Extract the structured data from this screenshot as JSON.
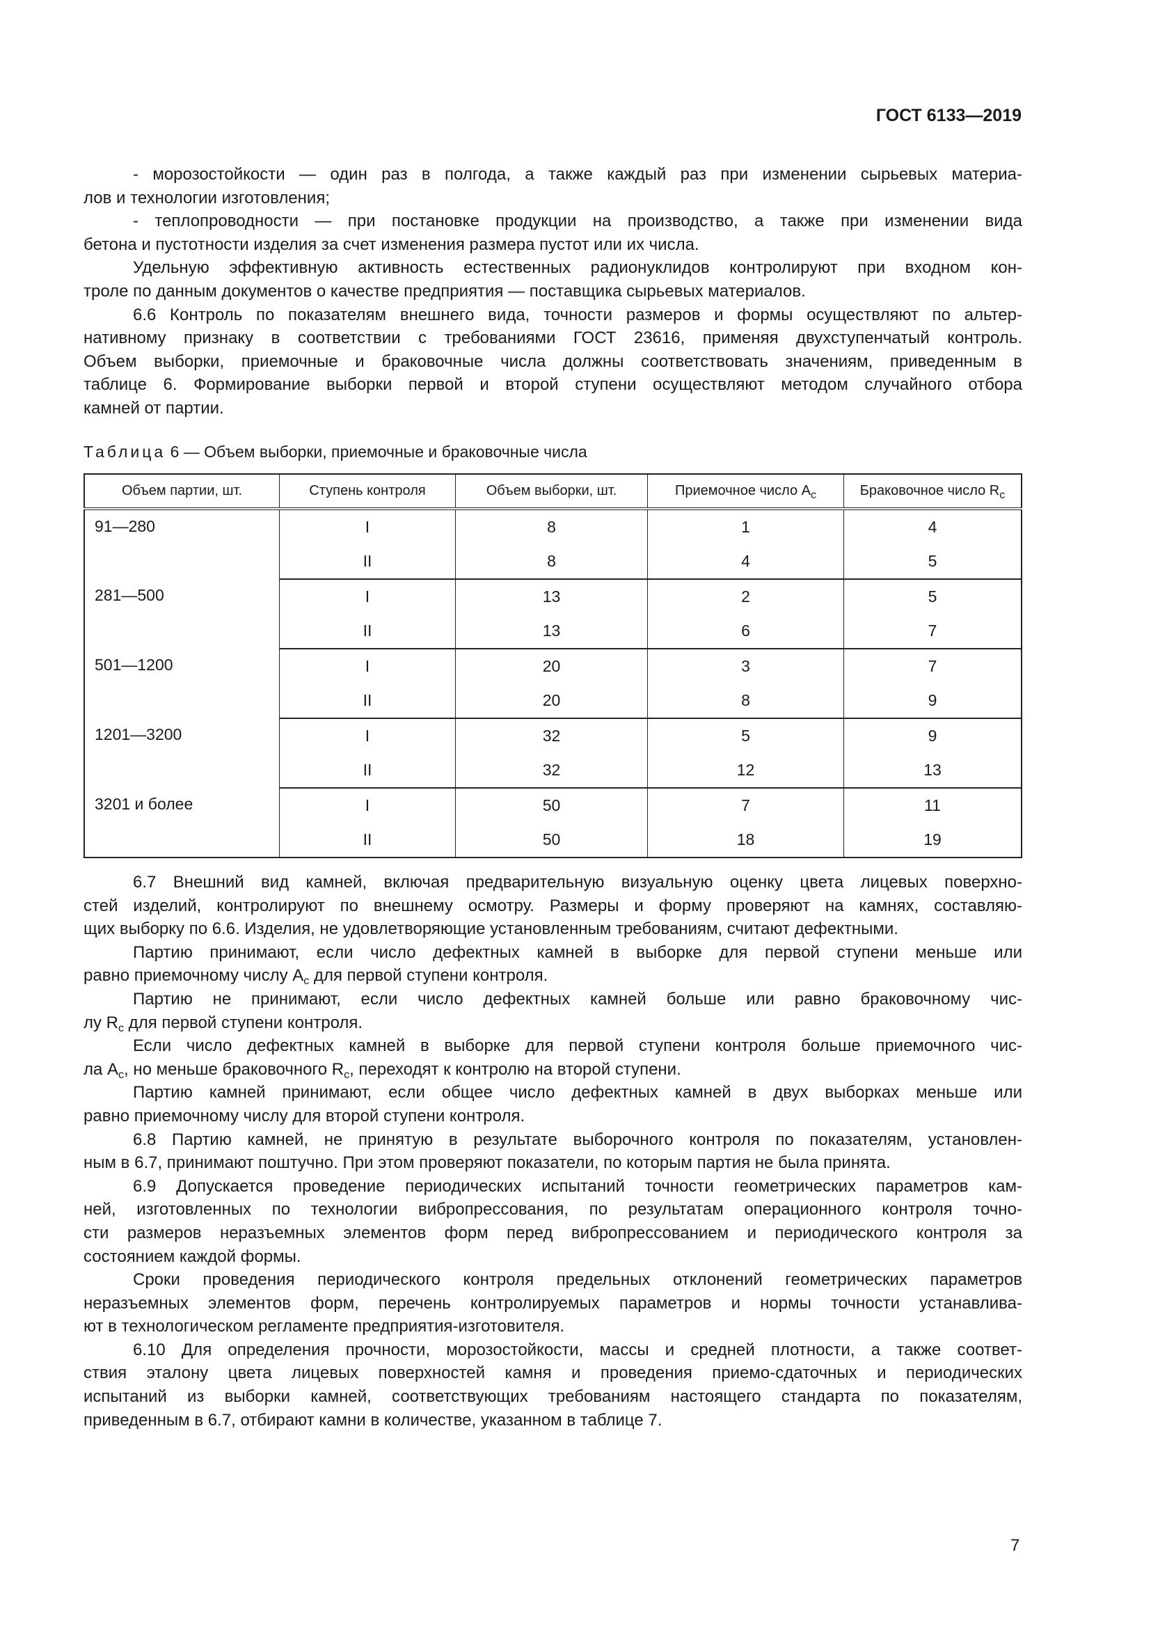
{
  "header": {
    "doc_id": "ГОСТ 6133—2019"
  },
  "top_text": [
    {
      "ind": true,
      "t": [
        "- морозостойкости — один раз в полгода, а также каждый раз при изменении сырьевых материа-"
      ]
    },
    {
      "last": true,
      "t": [
        "лов и технологии изготовления;"
      ]
    },
    {
      "ind": true,
      "t": [
        "- теплопроводности — при постановке продукции на производство, а также при изменении вида"
      ]
    },
    {
      "last": true,
      "t": [
        "бетона и пустотности изделия за счет изменения размера пустот или их числа."
      ]
    },
    {
      "ind": true,
      "t": [
        "Удельную эффективную активность естественных радионуклидов контролируют при входном кон-"
      ]
    },
    {
      "last": true,
      "t": [
        "троле по данным документов о качестве предприятия — поставщика сырьевых материалов."
      ]
    },
    {
      "ind": true,
      "t": [
        "6.6 Контроль по показателям внешнего вида, точности размеров и формы осуществляют по альтер-"
      ]
    },
    {
      "t": [
        "нативному признаку в соответствии с требованиями ГОСТ 23616, применяя двухступенчатый контроль."
      ]
    },
    {
      "t": [
        "Объем выборки, приемочные и браковочные числа должны соответствовать значениям, приведенным в"
      ]
    },
    {
      "t": [
        "таблице 6. Формирование выборки первой и второй ступени осуществляют методом случайного отбора"
      ]
    },
    {
      "last": true,
      "t": [
        "камней от партии."
      ]
    }
  ],
  "table": {
    "caption_label": "Таблица",
    "caption_text": " 6 — Объем выборки, приемочные и браковочные числа",
    "headers": [
      "Объем партии, шт.",
      "Ступень контроля",
      "Объем выборки, шт.",
      "Приемочное число A",
      "Браковочное число R"
    ],
    "header_sub": "c",
    "groups": [
      {
        "lot": "91—280",
        "rows": [
          [
            "I",
            "8",
            "1",
            "4"
          ],
          [
            "II",
            "8",
            "4",
            "5"
          ]
        ]
      },
      {
        "lot": "281—500",
        "rows": [
          [
            "I",
            "13",
            "2",
            "5"
          ],
          [
            "II",
            "13",
            "6",
            "7"
          ]
        ]
      },
      {
        "lot": "501—1200",
        "rows": [
          [
            "I",
            "20",
            "3",
            "7"
          ],
          [
            "II",
            "20",
            "8",
            "9"
          ]
        ]
      },
      {
        "lot": "1201—3200",
        "rows": [
          [
            "I",
            "32",
            "5",
            "9"
          ],
          [
            "II",
            "32",
            "12",
            "13"
          ]
        ]
      },
      {
        "lot": "3201 и более",
        "rows": [
          [
            "I",
            "50",
            "7",
            "11"
          ],
          [
            "II",
            "50",
            "18",
            "19"
          ]
        ]
      }
    ]
  },
  "bottom_text": [
    {
      "ind": true,
      "t": [
        "6.7 Внешний вид камней, включая предварительную визуальную оценку цвета лицевых поверхно-"
      ]
    },
    {
      "t": [
        "стей изделий, контролируют по внешнему осмотру. Размеры и форму проверяют на камнях, составляю-"
      ]
    },
    {
      "last": true,
      "t": [
        "щих выборку по 6.6. Изделия, не удовлетворяющие установленным требованиям, считают дефектными."
      ]
    },
    {
      "ind": true,
      "t": [
        "Партию принимают, если число дефектных камней в выборке для первой ступени меньше или"
      ]
    },
    {
      "last": true,
      "t": [
        "равно приемочному числу A",
        {
          "sub": "c"
        },
        " для первой ступени контроля."
      ]
    },
    {
      "ind": true,
      "t": [
        "Партию не принимают, если число дефектных камней больше или равно браковочному чис-"
      ]
    },
    {
      "last": true,
      "t": [
        "лу R",
        {
          "sub": "c"
        },
        " для первой ступени контроля."
      ]
    },
    {
      "ind": true,
      "t": [
        "Если число дефектных камней в выборке для первой ступени контроля больше приемочного чис-"
      ]
    },
    {
      "last": true,
      "t": [
        "ла A",
        {
          "sub": "c"
        },
        ", но меньше браковочного R",
        {
          "sub": "c"
        },
        ", переходят к контролю на второй ступени."
      ]
    },
    {
      "ind": true,
      "t": [
        "Партию камней принимают, если общее число дефектных камней в двух выборках меньше или"
      ]
    },
    {
      "last": true,
      "t": [
        "равно приемочному числу для второй ступени контроля."
      ]
    },
    {
      "ind": true,
      "t": [
        "6.8 Партию камней, не принятую в результате выборочного контроля по показателям, установлен-"
      ]
    },
    {
      "last": true,
      "t": [
        "ным в 6.7, принимают поштучно. При этом проверяют показатели, по которым партия не была принята."
      ]
    },
    {
      "ind": true,
      "t": [
        "6.9 Допускается проведение периодических испытаний точности геометрических параметров кам-"
      ]
    },
    {
      "t": [
        "ней, изготовленных по технологии вибропрессования, по результатам операционного контроля точно-"
      ]
    },
    {
      "t": [
        "сти размеров неразъемных элементов форм перед вибропрессованием и периодического контроля за"
      ]
    },
    {
      "last": true,
      "t": [
        "состоянием каждой формы."
      ]
    },
    {
      "ind": true,
      "t": [
        "Сроки проведения периодического контроля предельных отклонений геометрических параметров"
      ]
    },
    {
      "t": [
        "неразъемных элементов форм, перечень контролируемых параметров и нормы точности устанавлива-"
      ]
    },
    {
      "last": true,
      "t": [
        "ют в технологическом регламенте предприятия-изготовителя."
      ]
    },
    {
      "ind": true,
      "t": [
        "6.10 Для определения прочности, морозостойкости, массы и средней плотности, а также соответ-"
      ]
    },
    {
      "t": [
        "ствия эталону цвета лицевых поверхностей камня и проведения приемо-сдаточных и периодических"
      ]
    },
    {
      "t": [
        "испытаний из выборки камней, соответствующих требованиям настоящего стандарта по показателям,"
      ]
    },
    {
      "last": true,
      "t": [
        "приведенным в 6.7, отбирают камни в количестве, указанном в таблице 7."
      ]
    }
  ],
  "footer": {
    "page_number": "7"
  }
}
